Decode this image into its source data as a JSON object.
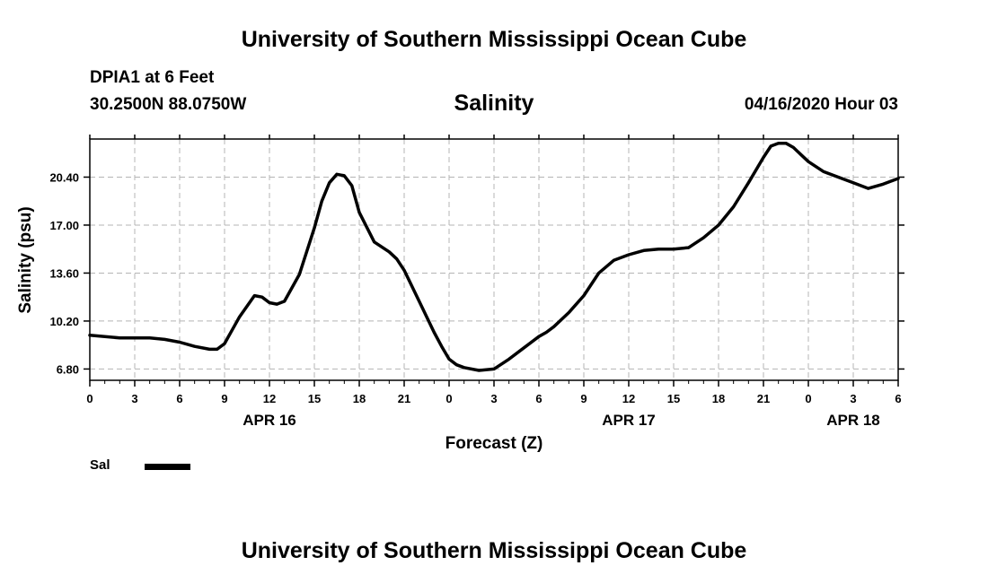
{
  "header": {
    "top_title": "University of Southern Mississippi Ocean Cube",
    "station": "DPIA1 at 6 Feet",
    "coords": "30.2500N 88.0750W",
    "timestamp": "04/16/2020 Hour 03",
    "bottom_title": "University of Southern Mississippi Ocean Cube"
  },
  "chart_data": {
    "type": "line",
    "title": "Salinity",
    "xlabel": "Forecast (Z)",
    "ylabel": "Salinity (psu)",
    "xlim": [
      0,
      54
    ],
    "ylim": [
      6.0,
      23.1
    ],
    "grid": true,
    "yticks": [
      {
        "value": 6.8,
        "label": "6.80"
      },
      {
        "value": 10.2,
        "label": "10.20"
      },
      {
        "value": 13.6,
        "label": "13.60"
      },
      {
        "value": 17.0,
        "label": "17.00"
      },
      {
        "value": 20.4,
        "label": "20.40"
      }
    ],
    "xticks": [
      {
        "value": 0,
        "label": "0"
      },
      {
        "value": 3,
        "label": "3"
      },
      {
        "value": 6,
        "label": "6"
      },
      {
        "value": 9,
        "label": "9"
      },
      {
        "value": 12,
        "label": "12"
      },
      {
        "value": 15,
        "label": "15"
      },
      {
        "value": 18,
        "label": "18"
      },
      {
        "value": 21,
        "label": "21"
      },
      {
        "value": 24,
        "label": "0"
      },
      {
        "value": 27,
        "label": "3"
      },
      {
        "value": 30,
        "label": "6"
      },
      {
        "value": 33,
        "label": "9"
      },
      {
        "value": 36,
        "label": "12"
      },
      {
        "value": 39,
        "label": "15"
      },
      {
        "value": 42,
        "label": "18"
      },
      {
        "value": 45,
        "label": "21"
      },
      {
        "value": 48,
        "label": "0"
      },
      {
        "value": 51,
        "label": "3"
      },
      {
        "value": 54,
        "label": "6"
      }
    ],
    "date_labels": [
      {
        "value": 12,
        "label": "APR 16"
      },
      {
        "value": 36,
        "label": "APR 17"
      },
      {
        "value": 51,
        "label": "APR 18"
      }
    ],
    "legend": [
      {
        "name": "Sal",
        "color": "#000000"
      }
    ],
    "series": [
      {
        "name": "Sal",
        "color": "#000000",
        "x": [
          0,
          1,
          2,
          3,
          4,
          5,
          6,
          7,
          8,
          8.5,
          9,
          10,
          11,
          11.5,
          12,
          12.5,
          13,
          14,
          15,
          15.5,
          16,
          16.5,
          17,
          17.5,
          18,
          19,
          20,
          20.5,
          21,
          22,
          23,
          23.5,
          24,
          24.5,
          25,
          26,
          27,
          28,
          29,
          30,
          30.5,
          31,
          32,
          33,
          34,
          35,
          36,
          37,
          38,
          39,
          40,
          41,
          42,
          43,
          44,
          45,
          45.5,
          46,
          46.5,
          47,
          48,
          49,
          50,
          51,
          52,
          53,
          54
        ],
        "y": [
          9.2,
          9.1,
          9.0,
          9.0,
          9.0,
          8.9,
          8.7,
          8.4,
          8.2,
          8.2,
          8.6,
          10.5,
          12.0,
          11.9,
          11.5,
          11.4,
          11.6,
          13.5,
          16.8,
          18.7,
          20.0,
          20.6,
          20.5,
          19.8,
          17.9,
          15.8,
          15.1,
          14.6,
          13.8,
          11.6,
          9.4,
          8.4,
          7.5,
          7.1,
          6.9,
          6.7,
          6.8,
          7.5,
          8.3,
          9.1,
          9.4,
          9.8,
          10.8,
          12.0,
          13.6,
          14.5,
          14.9,
          15.2,
          15.3,
          15.3,
          15.4,
          16.1,
          17.0,
          18.3,
          20.0,
          21.8,
          22.6,
          22.8,
          22.8,
          22.5,
          21.5,
          20.8,
          20.4,
          20.0,
          19.6,
          19.9,
          20.3
        ]
      }
    ]
  }
}
